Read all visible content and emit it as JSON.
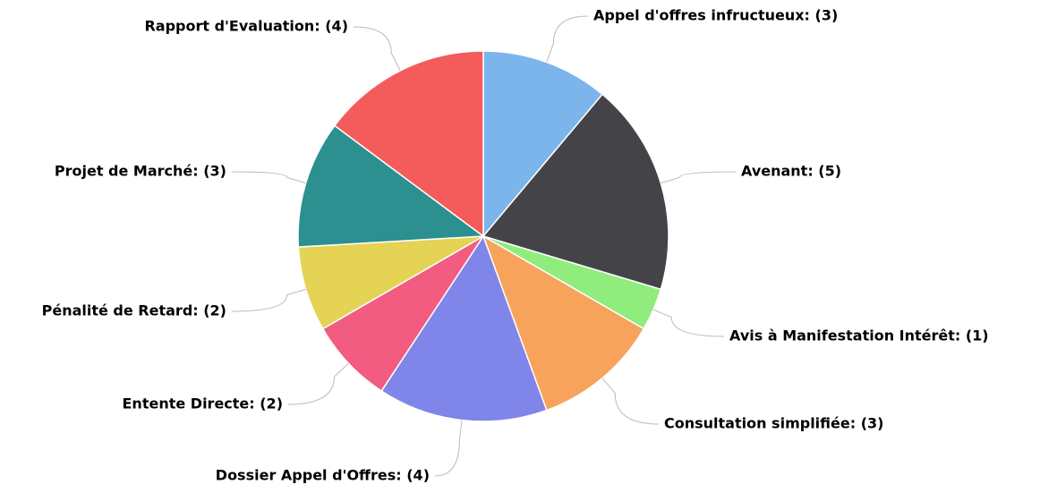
{
  "chart_data": {
    "type": "pie",
    "categories": [
      "Appel d'offres infructueux: (3)",
      "Avenant: (5)",
      "Avis à Manifestation Intérêt: (1)",
      "Consultation simplifiée: (3)",
      "Dossier Appel d'Offres: (4)",
      "Entente Directe: (2)",
      "Pénalité de Retard: (2)",
      "Projet de Marché: (3)",
      "Rapport d'Evaluation: (4)"
    ],
    "values": [
      3,
      5,
      1,
      3,
      4,
      2,
      2,
      3,
      4
    ],
    "colors": [
      "#7cb5ec",
      "#434348",
      "#90ed7d",
      "#f7a35c",
      "#8085e9",
      "#f15c80",
      "#e4d354",
      "#2b908f",
      "#f45b5b"
    ]
  }
}
